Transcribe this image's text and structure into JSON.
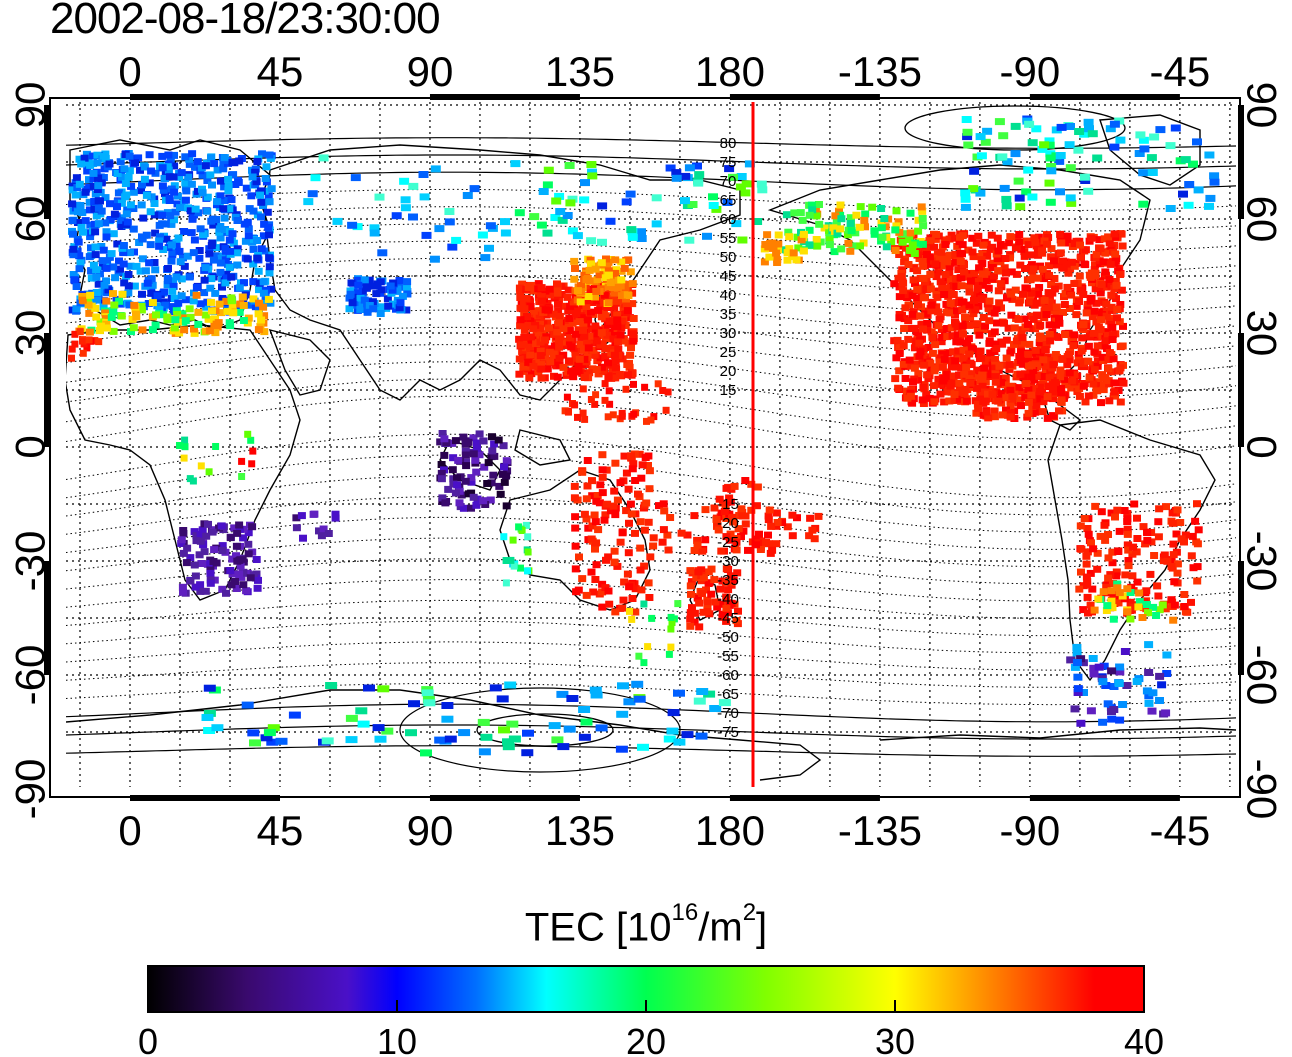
{
  "timestamp": "2002-08-18/23:30:00",
  "map": {
    "lon_ticks": [
      "0",
      "45",
      "90",
      "135",
      "180",
      "-135",
      "-90",
      "-45"
    ],
    "lat_ticks": [
      "90",
      "60",
      "30",
      "0",
      "-30",
      "-60",
      "-90"
    ],
    "contour_labels": [
      "80",
      "75",
      "70",
      "65",
      "60",
      "55",
      "50",
      "45",
      "40",
      "35",
      "30",
      "25",
      "20",
      "15",
      "-15",
      "-20",
      "-25",
      "-30",
      "-35",
      "-40",
      "-45",
      "-50",
      "-55",
      "-60",
      "-65",
      "-70",
      "-75"
    ],
    "terminator_color": "#ff0000"
  },
  "colorbar": {
    "title_prefix": "TEC  [10",
    "title_exp1": "16",
    "title_mid": "/m",
    "title_exp2": "2",
    "title_suffix": "]",
    "ticks": [
      "0",
      "10",
      "20",
      "30",
      "40"
    ],
    "min": 0,
    "max": 40,
    "colors": [
      "#000000",
      "#4a0a8a",
      "#0000ff",
      "#00a0ff",
      "#00ffff",
      "#00ff60",
      "#60ff00",
      "#ffff00",
      "#ff8000",
      "#ff0000"
    ]
  }
}
